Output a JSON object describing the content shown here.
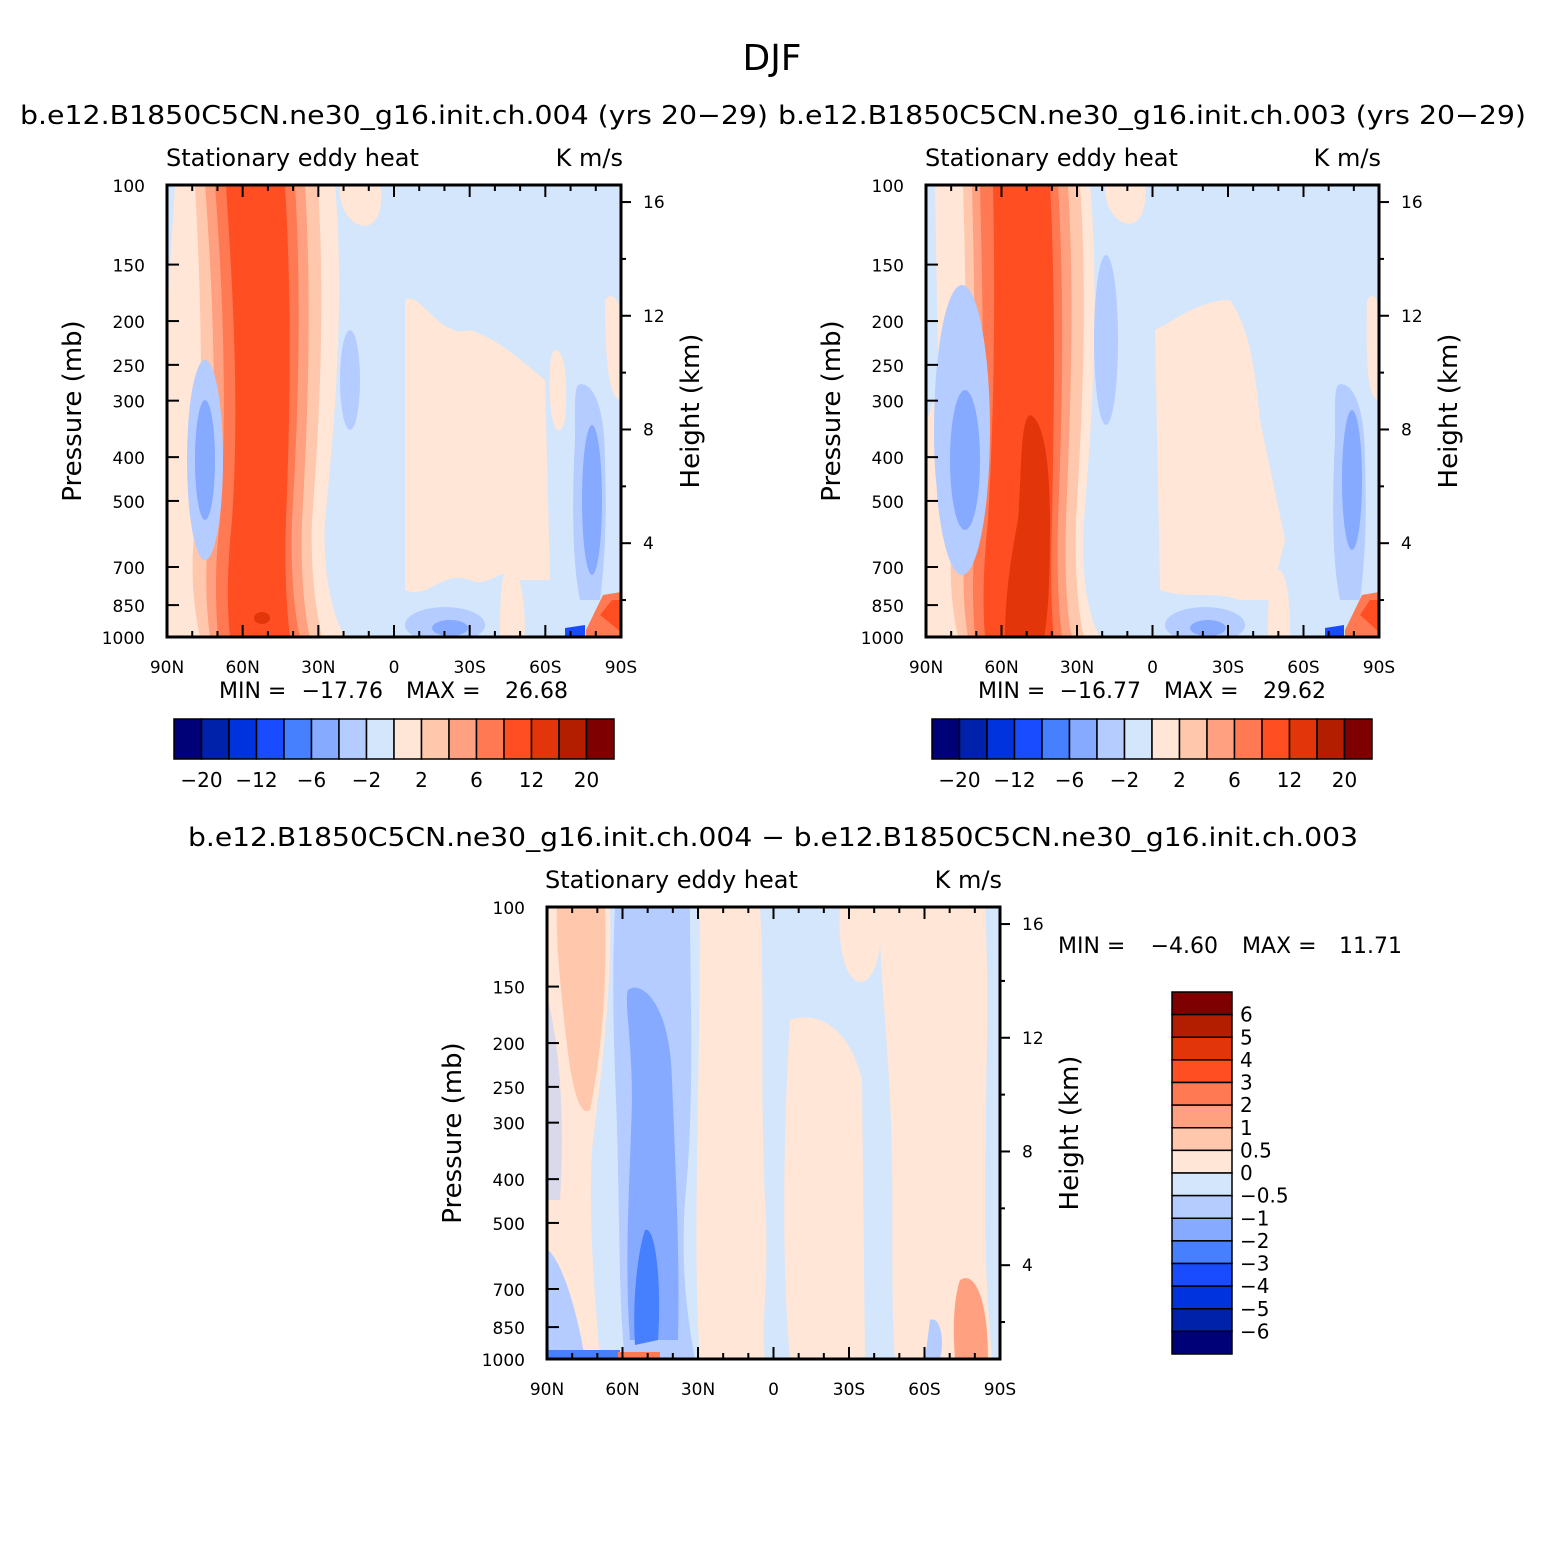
{
  "figure_title": "DJF",
  "colors": {
    "scale": [
      "#000077",
      "#0022aa",
      "#0033dd",
      "#1a4cff",
      "#4680ff",
      "#86aaff",
      "#b4ccff",
      "#d4e6fc",
      "#ffe6d6",
      "#ffc8ad",
      "#ffa180",
      "#ff7a52",
      "#ff4e22",
      "#e2360a",
      "#b31d00",
      "#7f0000"
    ]
  },
  "panels": [
    {
      "id": "p1",
      "case_title": "b.e12.B1850C5CN.ne30_g16.init.ch.004 (yrs 20−29)",
      "left_label": "Stationary eddy heat",
      "right_label": "K m/s",
      "min_label": "MIN =",
      "min_value": "−17.76",
      "max_label": "MAX =",
      "max_value": "26.68"
    },
    {
      "id": "p2",
      "case_title": "b.e12.B1850C5CN.ne30_g16.init.ch.003 (yrs 20−29)",
      "left_label": "Stationary eddy heat",
      "right_label": "K m/s",
      "min_label": "MIN =",
      "min_value": "−16.77",
      "max_label": "MAX =",
      "max_value": "29.62"
    },
    {
      "id": "p3",
      "case_title": "b.e12.B1850C5CN.ne30_g16.init.ch.004 − b.e12.B1850C5CN.ne30_g16.init.ch.003",
      "left_label": "Stationary eddy heat",
      "right_label": "K m/s",
      "min_label": "MIN =",
      "min_value": "−4.60",
      "max_label": "MAX =",
      "max_value": "11.71"
    }
  ],
  "colorbar_top": {
    "labels": [
      "−20",
      "−12",
      "−6",
      "−2",
      "2",
      "6",
      "12",
      "20"
    ]
  },
  "colorbar_diff": {
    "labels": [
      "6",
      "5",
      "4",
      "3",
      "2",
      "1",
      "0.5",
      "0",
      "−0.5",
      "−1",
      "−2",
      "−3",
      "−4",
      "−5",
      "−6"
    ]
  },
  "chart_data": {
    "type": "heatmap",
    "xlabel": "",
    "ylabel": "Pressure (mb)",
    "y2label": "Height (km)",
    "x_ticks": [
      "90N",
      "60N",
      "30N",
      "0",
      "30S",
      "60S",
      "90S"
    ],
    "x_tick_values": [
      90,
      60,
      30,
      0,
      -30,
      -60,
      -90
    ],
    "y_ticks": [
      "100",
      "150",
      "200",
      "250",
      "300",
      "400",
      "500",
      "700",
      "850",
      "1000"
    ],
    "y_tick_values": [
      100,
      150,
      200,
      250,
      300,
      400,
      500,
      700,
      850,
      1000
    ],
    "y_scale": "log",
    "ylim": [
      1000,
      100
    ],
    "xlim": [
      90,
      -90
    ],
    "y2_ticks": [
      "4",
      "8",
      "12",
      "16"
    ],
    "y2_tick_values": [
      4,
      8,
      12,
      16
    ],
    "contour_levels_top": [
      -20,
      -16,
      -12,
      -8,
      -6,
      -4,
      -2,
      -1,
      1,
      2,
      4,
      6,
      8,
      12,
      16,
      20
    ],
    "contour_levels_diff": [
      -6,
      -5,
      -4,
      -3,
      -2,
      -1,
      -0.5,
      0,
      0.5,
      1,
      2,
      3,
      4,
      5,
      6
    ]
  }
}
